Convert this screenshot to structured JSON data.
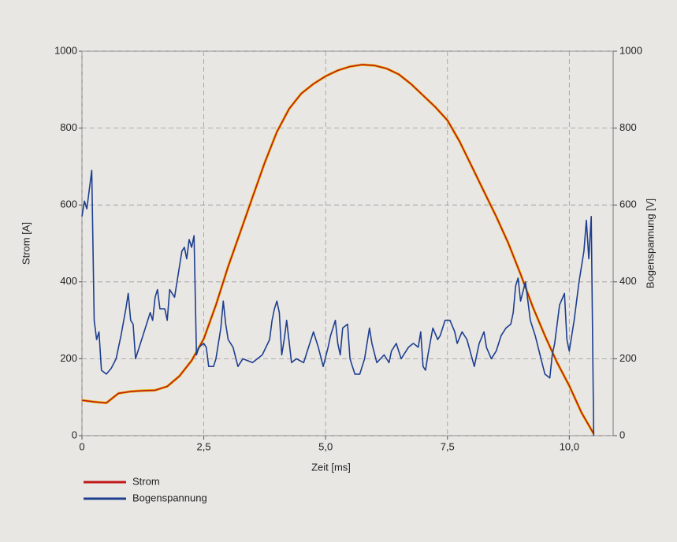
{
  "chart_data": {
    "type": "line",
    "xlabel": "Zeit [ms]",
    "ylabel": "Strom [A]",
    "y2label": "Bogenspannung [V]",
    "xlim": [
      0,
      10.9
    ],
    "ylim": [
      0,
      1000
    ],
    "y2lim": [
      0,
      1000
    ],
    "xticks": [
      0,
      {
        "value": 2.5,
        "label": "2,5"
      },
      {
        "value": 5,
        "label": "5,0"
      },
      {
        "value": 7.5,
        "label": "7,5"
      },
      {
        "value": 10,
        "label": "10,0"
      }
    ],
    "yticks": [
      0,
      200,
      400,
      600,
      800,
      1000
    ],
    "y2ticks": [
      0,
      200,
      400,
      600,
      800,
      1000
    ],
    "grid": true,
    "legend": "bottom-left",
    "series": [
      {
        "name": "Strom",
        "color": "#c01a1a",
        "x": [
          0,
          0.25,
          0.5,
          0.75,
          1.0,
          1.25,
          1.5,
          1.75,
          2.0,
          2.25,
          2.5,
          2.75,
          3.0,
          3.25,
          3.5,
          3.75,
          4.0,
          4.25,
          4.5,
          4.75,
          5.0,
          5.25,
          5.5,
          5.75,
          6.0,
          6.25,
          6.5,
          6.75,
          7.0,
          7.25,
          7.5,
          7.75,
          8.0,
          8.25,
          8.5,
          8.75,
          9.0,
          9.25,
          9.5,
          9.75,
          10.0,
          10.25,
          10.5
        ],
        "values": [
          92,
          88,
          85,
          110,
          115,
          117,
          118,
          128,
          155,
          195,
          252,
          340,
          440,
          530,
          620,
          710,
          790,
          850,
          890,
          915,
          935,
          950,
          960,
          965,
          963,
          955,
          940,
          915,
          885,
          855,
          820,
          765,
          700,
          635,
          570,
          500,
          420,
          335,
          260,
          190,
          130,
          60,
          5
        ]
      },
      {
        "name": "Bogenspannung",
        "color": "#1d3f8f",
        "axis": "y2",
        "x": [
          0,
          0.05,
          0.1,
          0.15,
          0.2,
          0.25,
          0.3,
          0.35,
          0.4,
          0.5,
          0.6,
          0.7,
          0.8,
          0.9,
          0.95,
          1.0,
          1.05,
          1.1,
          1.2,
          1.3,
          1.4,
          1.45,
          1.5,
          1.55,
          1.6,
          1.7,
          1.75,
          1.8,
          1.9,
          2.0,
          2.05,
          2.1,
          2.15,
          2.2,
          2.25,
          2.3,
          2.35,
          2.4,
          2.5,
          2.55,
          2.6,
          2.7,
          2.75,
          2.85,
          2.9,
          2.95,
          3.0,
          3.1,
          3.2,
          3.3,
          3.5,
          3.7,
          3.85,
          3.9,
          3.95,
          4.0,
          4.05,
          4.1,
          4.15,
          4.2,
          4.3,
          4.4,
          4.55,
          4.65,
          4.75,
          4.85,
          4.95,
          5.05,
          5.1,
          5.2,
          5.25,
          5.3,
          5.35,
          5.45,
          5.5,
          5.55,
          5.6,
          5.7,
          5.8,
          5.9,
          5.95,
          6.05,
          6.2,
          6.3,
          6.35,
          6.45,
          6.55,
          6.7,
          6.8,
          6.9,
          6.95,
          7.0,
          7.05,
          7.1,
          7.2,
          7.3,
          7.35,
          7.45,
          7.55,
          7.65,
          7.7,
          7.8,
          7.9,
          8.05,
          8.15,
          8.25,
          8.3,
          8.4,
          8.5,
          8.6,
          8.7,
          8.8,
          8.85,
          8.9,
          8.95,
          9.0,
          9.1,
          9.2,
          9.3,
          9.4,
          9.5,
          9.6,
          9.65,
          9.7,
          9.8,
          9.9,
          9.95,
          10.0,
          10.1,
          10.15,
          10.2,
          10.3,
          10.35,
          10.4,
          10.45,
          10.5
        ],
        "values": [
          570,
          610,
          590,
          640,
          690,
          300,
          250,
          270,
          170,
          160,
          175,
          200,
          260,
          330,
          370,
          300,
          290,
          200,
          240,
          280,
          320,
          300,
          360,
          380,
          330,
          330,
          300,
          380,
          360,
          440,
          480,
          490,
          460,
          510,
          490,
          520,
          210,
          230,
          240,
          230,
          180,
          180,
          200,
          280,
          350,
          290,
          250,
          230,
          180,
          200,
          190,
          210,
          250,
          300,
          330,
          350,
          320,
          210,
          250,
          300,
          190,
          200,
          190,
          230,
          270,
          230,
          180,
          230,
          260,
          300,
          240,
          210,
          280,
          290,
          200,
          180,
          160,
          160,
          200,
          280,
          240,
          190,
          210,
          190,
          220,
          240,
          200,
          230,
          240,
          230,
          270,
          180,
          170,
          210,
          280,
          250,
          260,
          300,
          300,
          270,
          240,
          270,
          250,
          180,
          240,
          270,
          230,
          200,
          220,
          260,
          280,
          290,
          320,
          390,
          410,
          350,
          400,
          300,
          260,
          210,
          160,
          150,
          210,
          240,
          340,
          370,
          250,
          220,
          300,
          350,
          400,
          480,
          560,
          460,
          570,
          0
        ]
      }
    ]
  }
}
